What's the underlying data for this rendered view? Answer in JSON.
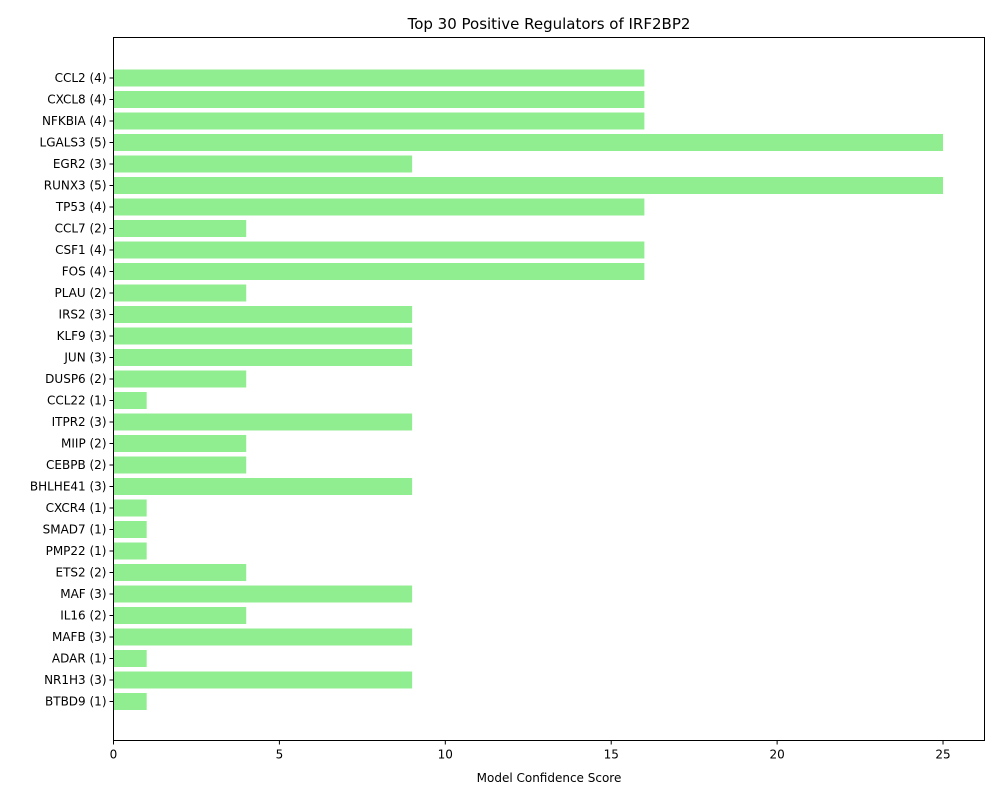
{
  "chart_data": {
    "type": "bar",
    "orientation": "horizontal",
    "title": "Top 30 Positive Regulators of IRF2BP2",
    "xlabel": "Model Confidence Score",
    "ylabel": "",
    "xlim": [
      0,
      26.25
    ],
    "xticks": [
      "0",
      "5",
      "10",
      "15",
      "20",
      "25"
    ],
    "bar_color": "#90ee90",
    "grid": false,
    "categories": [
      "CCL2 (4)",
      "CXCL8 (4)",
      "NFKBIA (4)",
      "LGALS3 (5)",
      "EGR2 (3)",
      "RUNX3 (5)",
      "TP53 (4)",
      "CCL7 (2)",
      "CSF1 (4)",
      "FOS (4)",
      "PLAU (2)",
      "IRS2 (3)",
      "KLF9 (3)",
      "JUN (3)",
      "DUSP6 (2)",
      "CCL22 (1)",
      "ITPR2 (3)",
      "MIIP (2)",
      "CEBPB (2)",
      "BHLHE41 (3)",
      "CXCR4 (1)",
      "SMAD7 (1)",
      "PMP22 (1)",
      "ETS2 (2)",
      "MAF (3)",
      "IL16 (2)",
      "MAFB (3)",
      "ADAR (1)",
      "NR1H3 (3)",
      "BTBD9 (1)"
    ],
    "values": [
      16,
      16,
      16,
      25,
      9,
      25,
      16,
      4,
      16,
      16,
      4,
      9,
      9,
      9,
      4,
      1,
      9,
      4,
      4,
      9,
      1,
      1,
      1,
      4,
      9,
      4,
      9,
      1,
      9,
      1
    ]
  }
}
